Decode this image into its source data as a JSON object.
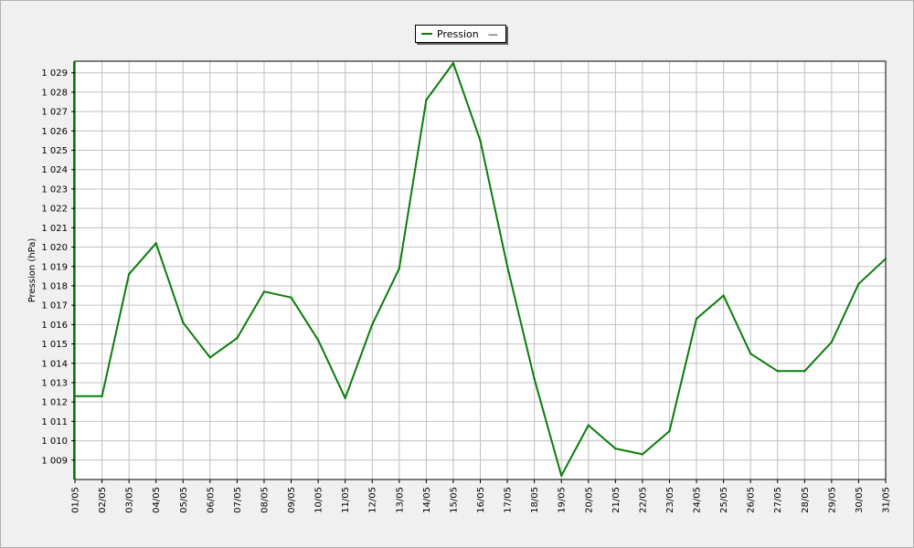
{
  "chart_data": {
    "type": "line",
    "ylabel": "Pression (hPa)",
    "ylim": [
      1008,
      1029.6
    ],
    "y_ticks": [
      "1 009",
      "1 010",
      "1 011",
      "1 012",
      "1 013",
      "1 014",
      "1 015",
      "1 016",
      "1 017",
      "1 018",
      "1 019",
      "1 020",
      "1 021",
      "1 022",
      "1 023",
      "1 024",
      "1 025",
      "1 026",
      "1 027",
      "1 028",
      "1 029"
    ],
    "y_tick_values": [
      1009,
      1010,
      1011,
      1012,
      1013,
      1014,
      1015,
      1016,
      1017,
      1018,
      1019,
      1020,
      1021,
      1022,
      1023,
      1024,
      1025,
      1026,
      1027,
      1028,
      1029
    ],
    "categories": [
      "01/05",
      "02/05",
      "03/05",
      "04/05",
      "05/05",
      "06/05",
      "07/05",
      "08/05",
      "09/05",
      "10/05",
      "11/05",
      "12/05",
      "13/05",
      "14/05",
      "15/05",
      "16/05",
      "17/05",
      "18/05",
      "19/05",
      "20/05",
      "21/05",
      "22/05",
      "23/05",
      "24/05",
      "25/05",
      "26/05",
      "27/05",
      "28/05",
      "29/05",
      "30/05",
      "31/05"
    ],
    "series": [
      {
        "name": "Pression",
        "color": "#0a7d0a",
        "values": [
          1012.3,
          1012.3,
          1018.6,
          1020.2,
          1016.1,
          1014.3,
          1015.3,
          1017.7,
          1017.4,
          1015.2,
          1012.2,
          1016.0,
          1018.9,
          1027.6,
          1029.5,
          1025.5,
          1019.0,
          1013.2,
          1008.2,
          1010.8,
          1009.6,
          1009.3,
          1010.5,
          1016.3,
          1017.5,
          1014.5,
          1013.6,
          1013.6,
          1015.1,
          1018.1,
          1019.4
        ]
      }
    ],
    "grid": true,
    "legend_position": "top-center"
  },
  "legend": {
    "label": "Pression",
    "marker": "—"
  }
}
